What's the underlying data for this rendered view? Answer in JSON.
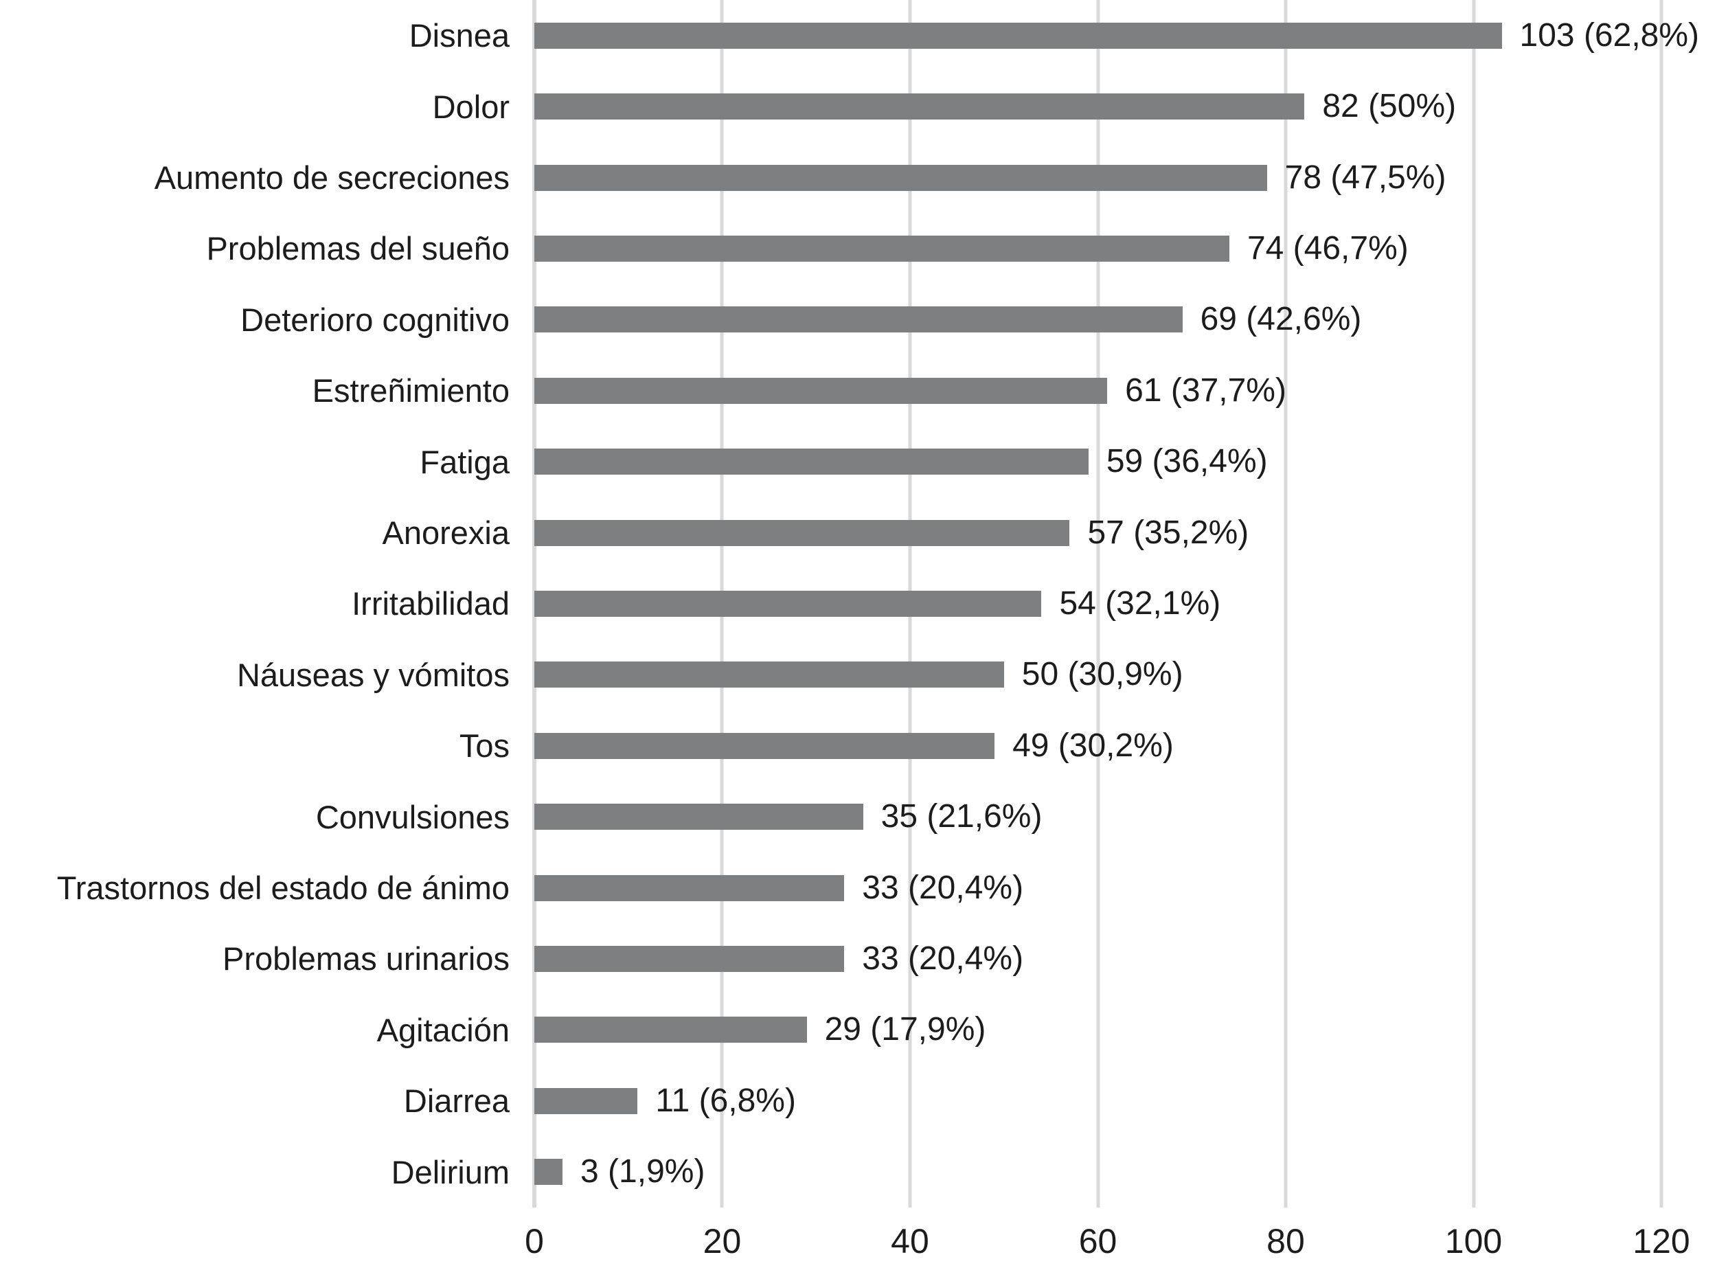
{
  "chart_data": {
    "type": "bar",
    "orientation": "horizontal",
    "categories": [
      "Disnea",
      "Dolor",
      "Aumento de secreciones",
      "Problemas del sueño",
      "Deterioro cognitivo",
      "Estreñimiento",
      "Fatiga",
      "Anorexia",
      "Irritabilidad",
      "Náuseas y vómitos",
      "Tos",
      "Convulsiones",
      "Trastornos del estado de ánimo",
      "Problemas urinarios",
      "Agitación",
      "Diarrea",
      "Delirium"
    ],
    "values": [
      103,
      82,
      78,
      74,
      69,
      61,
      59,
      57,
      54,
      50,
      49,
      35,
      33,
      33,
      29,
      11,
      3
    ],
    "value_labels": [
      "103 (62,8%)",
      "82 (50%)",
      "78 (47,5%)",
      "74 (46,7%)",
      "69 (42,6%)",
      "61 (37,7%)",
      "59 (36,4%)",
      "57 (35,2%)",
      "54 (32,1%)",
      "50 (30,9%)",
      "49 (30,2%)",
      "35 (21,6%)",
      "33 (20,4%)",
      "33 (20,4%)",
      "29 (17,9%)",
      "11 (6,8%)",
      "3 (1,9%)"
    ],
    "xlim": [
      0,
      120
    ],
    "x_ticks": [
      0,
      20,
      40,
      60,
      80,
      100,
      120
    ],
    "grid": "vertical-gridlines-on",
    "legend": "none",
    "bar_color": "#7d7f80",
    "gridline_color": "#d9d9d9",
    "text_color": "#1c1c1c",
    "background_color": "#ffffff"
  }
}
